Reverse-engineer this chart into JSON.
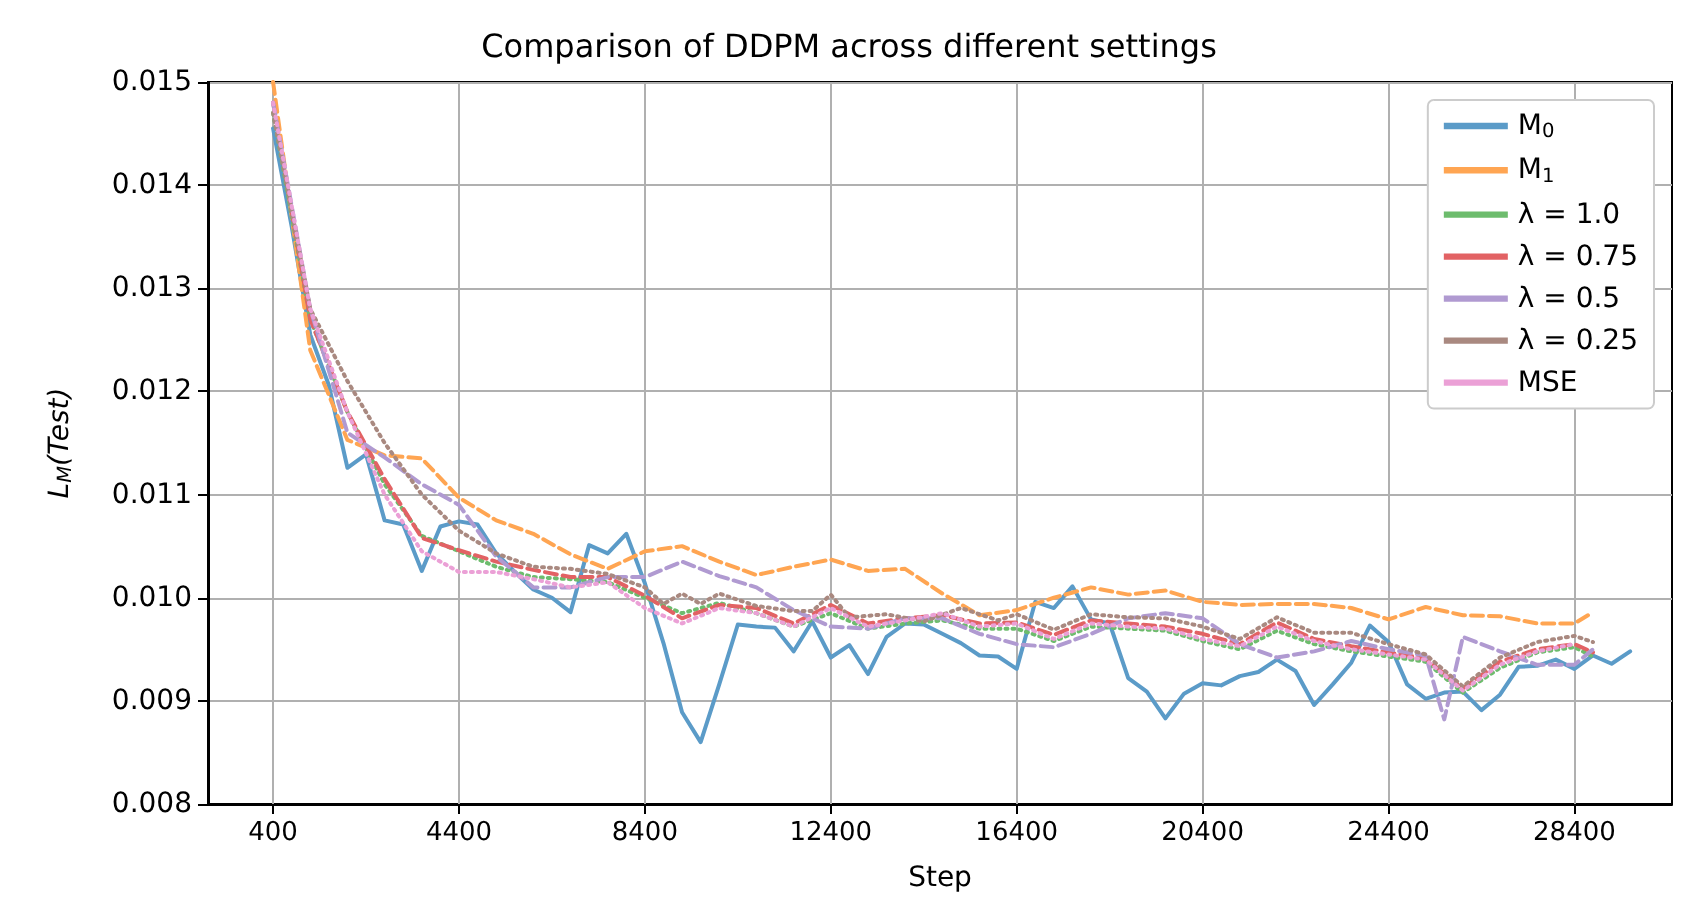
{
  "chart_data": {
    "type": "line",
    "title": "Comparison of DDPM across different settings",
    "xlabel": "Step",
    "ylabel": "L$_{M}$(Test)",
    "xlim": [
      -1000,
      30500
    ],
    "xticks": [
      400,
      4400,
      8400,
      12400,
      16400,
      20400,
      24400,
      28400
    ],
    "ylim": [
      0.008,
      0.015
    ],
    "yticks": [
      0.008,
      0.009,
      {
        "value": 0.01,
        "label": "0.010"
      },
      0.011,
      0.012,
      0.013,
      0.014,
      0.015
    ],
    "grid": true,
    "legend": "top right",
    "series": [
      {
        "name": "M$_{0}$",
        "color": "#5b9bc8",
        "line_style": "solid",
        "x": [
          400,
          800,
          1200,
          1600,
          2000,
          2400,
          2800,
          3200,
          3600,
          4000,
          4400,
          4800,
          5200,
          5600,
          6000,
          6400,
          6800,
          7200,
          7600,
          8000,
          8400,
          8800,
          9200,
          9600,
          10000,
          10400,
          10800,
          11200,
          11600,
          12000,
          12400,
          12800,
          13200,
          13600,
          14000,
          14400,
          14800,
          15200,
          15600,
          16000,
          16400,
          16800,
          17200,
          17600,
          18000,
          18400,
          18800,
          19200,
          19600,
          20000,
          20400,
          20800,
          21200,
          21600,
          22000,
          22400,
          22800,
          23200,
          23600,
          24000,
          24400,
          24800,
          25200,
          25600,
          26000,
          26400,
          26800,
          27200,
          27600,
          28000,
          28400,
          28800,
          29200,
          29600
        ],
        "values": [
          0.01455,
          0.0136,
          0.01255,
          0.01206,
          0.01126,
          0.01139,
          0.01075,
          0.01071,
          0.01026,
          0.01069,
          0.01074,
          0.01071,
          0.01043,
          0.01025,
          0.01008,
          0.01,
          0.00986,
          0.01051,
          0.01043,
          0.01062,
          0.01014,
          0.00956,
          0.00889,
          0.0086,
          0.00916,
          0.00974,
          0.00972,
          0.00971,
          0.00948,
          0.00977,
          0.00942,
          0.00954,
          0.00926,
          0.00962,
          0.00975,
          0.00974,
          0.00965,
          0.00956,
          0.00944,
          0.00943,
          0.00931,
          0.00996,
          0.0099,
          0.01011,
          0.00979,
          0.00975,
          0.00922,
          0.00909,
          0.00883,
          0.00907,
          0.00917,
          0.00915,
          0.00924,
          0.00928,
          0.0094,
          0.00929,
          0.00896,
          0.00916,
          0.00937,
          0.00973,
          0.00957,
          0.00916,
          0.00902,
          0.00908,
          0.00909,
          0.00891,
          0.00906,
          0.00933,
          0.00934,
          0.0094,
          0.00931,
          0.00944,
          0.00936,
          0.00948
        ]
      },
      {
        "name": "M$_{1}$",
        "color": "#ffa552",
        "line_style": "dashed",
        "x": [
          400,
          1200,
          2000,
          2800,
          3600,
          4400,
          5200,
          6000,
          6800,
          7600,
          8400,
          9200,
          10000,
          10800,
          11600,
          12400,
          13200,
          14000,
          14800,
          15600,
          16400,
          17200,
          18000,
          18800,
          19600,
          20400,
          21200,
          22000,
          22800,
          23600,
          24400,
          25200,
          26000,
          26800,
          27600,
          28400,
          28800
        ],
        "values": [
          0.015,
          0.0124,
          0.01153,
          0.01138,
          0.01135,
          0.01097,
          0.01075,
          0.01062,
          0.01042,
          0.01028,
          0.01045,
          0.0105,
          0.01035,
          0.01022,
          0.0103,
          0.01037,
          0.01026,
          0.01028,
          0.01004,
          0.00983,
          0.00988,
          0.01,
          0.0101,
          0.01003,
          0.01007,
          0.00996,
          0.00993,
          0.00994,
          0.00994,
          0.0099,
          0.00979,
          0.00991,
          0.00983,
          0.00982,
          0.00975,
          0.00975,
          0.00986
        ]
      },
      {
        "name": "λ = 1.0",
        "color": "#6dbc6d",
        "line_style": "dotted",
        "x": [
          400,
          1200,
          2000,
          2800,
          3600,
          4400,
          5200,
          6000,
          6800,
          7600,
          8400,
          9200,
          10000,
          10800,
          11600,
          12400,
          13200,
          14000,
          14800,
          15600,
          16400,
          17200,
          18000,
          18800,
          19600,
          20400,
          21200,
          22000,
          22800,
          23600,
          24400,
          25200,
          26000,
          26800,
          27600,
          28400,
          28800
        ],
        "values": [
          0.0147,
          0.0127,
          0.0118,
          0.0111,
          0.0106,
          0.01045,
          0.0103,
          0.0102,
          0.01018,
          0.01015,
          0.01,
          0.00985,
          0.00995,
          0.00985,
          0.00972,
          0.00985,
          0.0097,
          0.00975,
          0.00978,
          0.0097,
          0.0097,
          0.00958,
          0.00972,
          0.0097,
          0.00968,
          0.00958,
          0.0095,
          0.00968,
          0.00955,
          0.00948,
          0.00943,
          0.00938,
          0.00908,
          0.00932,
          0.00947,
          0.00952,
          0.00943
        ]
      },
      {
        "name": "λ = 0.75",
        "color": "#e26264",
        "line_style": "dashed",
        "x": [
          400,
          1200,
          2000,
          2800,
          3600,
          4400,
          5200,
          6000,
          6800,
          7600,
          8400,
          9200,
          10000,
          10800,
          11600,
          12400,
          13200,
          14000,
          14800,
          15600,
          16400,
          17200,
          18000,
          18800,
          19600,
          20400,
          21200,
          22000,
          22800,
          23600,
          24400,
          25200,
          26000,
          26800,
          27600,
          28400,
          28800
        ],
        "values": [
          0.0148,
          0.0127,
          0.0118,
          0.01115,
          0.01058,
          0.01046,
          0.01035,
          0.01027,
          0.0102,
          0.0102,
          0.01002,
          0.0098,
          0.00993,
          0.0099,
          0.00975,
          0.00993,
          0.00975,
          0.0098,
          0.00983,
          0.00975,
          0.00976,
          0.00964,
          0.00978,
          0.00975,
          0.00972,
          0.00965,
          0.00955,
          0.00976,
          0.0096,
          0.00953,
          0.00947,
          0.00941,
          0.00912,
          0.00938,
          0.0095,
          0.00955,
          0.00947
        ]
      },
      {
        "name": "λ = 0.5",
        "color": "#b09ad1",
        "line_style": "dashed",
        "x": [
          400,
          1200,
          2000,
          2800,
          3600,
          4400,
          5200,
          6000,
          6800,
          7600,
          8400,
          9200,
          10000,
          10800,
          11600,
          12400,
          13200,
          14000,
          14800,
          15600,
          16400,
          17200,
          18000,
          18800,
          19600,
          20400,
          21200,
          22000,
          22800,
          23600,
          24400,
          25200,
          25600,
          26000,
          26800,
          27600,
          28400,
          28800
        ],
        "values": [
          0.0148,
          0.0128,
          0.0116,
          0.01136,
          0.0111,
          0.0109,
          0.0104,
          0.0101,
          0.0101,
          0.0102,
          0.0102,
          0.01035,
          0.01021,
          0.0101,
          0.00988,
          0.00972,
          0.0097,
          0.0098,
          0.0098,
          0.00965,
          0.00955,
          0.00952,
          0.00965,
          0.0098,
          0.00985,
          0.0098,
          0.00955,
          0.00942,
          0.00948,
          0.00958,
          0.0095,
          0.00944,
          0.00882,
          0.00962,
          0.00948,
          0.00935,
          0.00935,
          0.0095
        ]
      },
      {
        "name": "λ = 0.25",
        "color": "#a98980",
        "line_style": "dotted",
        "x": [
          400,
          1200,
          2000,
          2800,
          3600,
          4400,
          5200,
          6000,
          6800,
          7600,
          8400,
          8800,
          9200,
          9600,
          10000,
          10800,
          11600,
          12000,
          12400,
          12800,
          13600,
          14400,
          15200,
          16000,
          16400,
          17200,
          18000,
          18800,
          19600,
          20400,
          21200,
          22000,
          22800,
          23600,
          24400,
          25200,
          26000,
          26800,
          27600,
          28400,
          28800
        ],
        "values": [
          0.0147,
          0.0128,
          0.0121,
          0.0115,
          0.011,
          0.01065,
          0.01043,
          0.0103,
          0.01028,
          0.01023,
          0.0101,
          0.00994,
          0.01004,
          0.00994,
          0.01004,
          0.00992,
          0.00987,
          0.00987,
          0.01003,
          0.00981,
          0.00984,
          0.00977,
          0.0099,
          0.00978,
          0.00984,
          0.00969,
          0.00984,
          0.00981,
          0.0098,
          0.00972,
          0.0096,
          0.00981,
          0.00966,
          0.00966,
          0.00955,
          0.00945,
          0.00914,
          0.00942,
          0.00957,
          0.00963,
          0.00957
        ]
      },
      {
        "name": "MSE",
        "color": "#eba0d6",
        "line_style": "dotted",
        "x": [
          400,
          1200,
          2000,
          2800,
          3600,
          4400,
          5200,
          6000,
          6800,
          7600,
          8400,
          9200,
          10000,
          10800,
          11600,
          12400,
          13200,
          14000,
          14800,
          15600,
          16400,
          17200,
          18000,
          18800,
          19600,
          20400,
          21200,
          22000,
          22800,
          23600,
          24400,
          25200,
          26000,
          26800,
          27600,
          28400
        ],
        "values": [
          0.0148,
          0.0128,
          0.0118,
          0.011,
          0.01045,
          0.01025,
          0.01025,
          0.01018,
          0.0101,
          0.01015,
          0.0099,
          0.00975,
          0.0099,
          0.00985,
          0.00972,
          0.0099,
          0.00972,
          0.00978,
          0.00985,
          0.00972,
          0.00975,
          0.0096,
          0.00975,
          0.00972,
          0.0097,
          0.0096,
          0.00953,
          0.00972,
          0.00958,
          0.0095,
          0.00945,
          0.0094,
          0.0091,
          0.00935,
          0.00948,
          0.00955
        ]
      }
    ]
  }
}
